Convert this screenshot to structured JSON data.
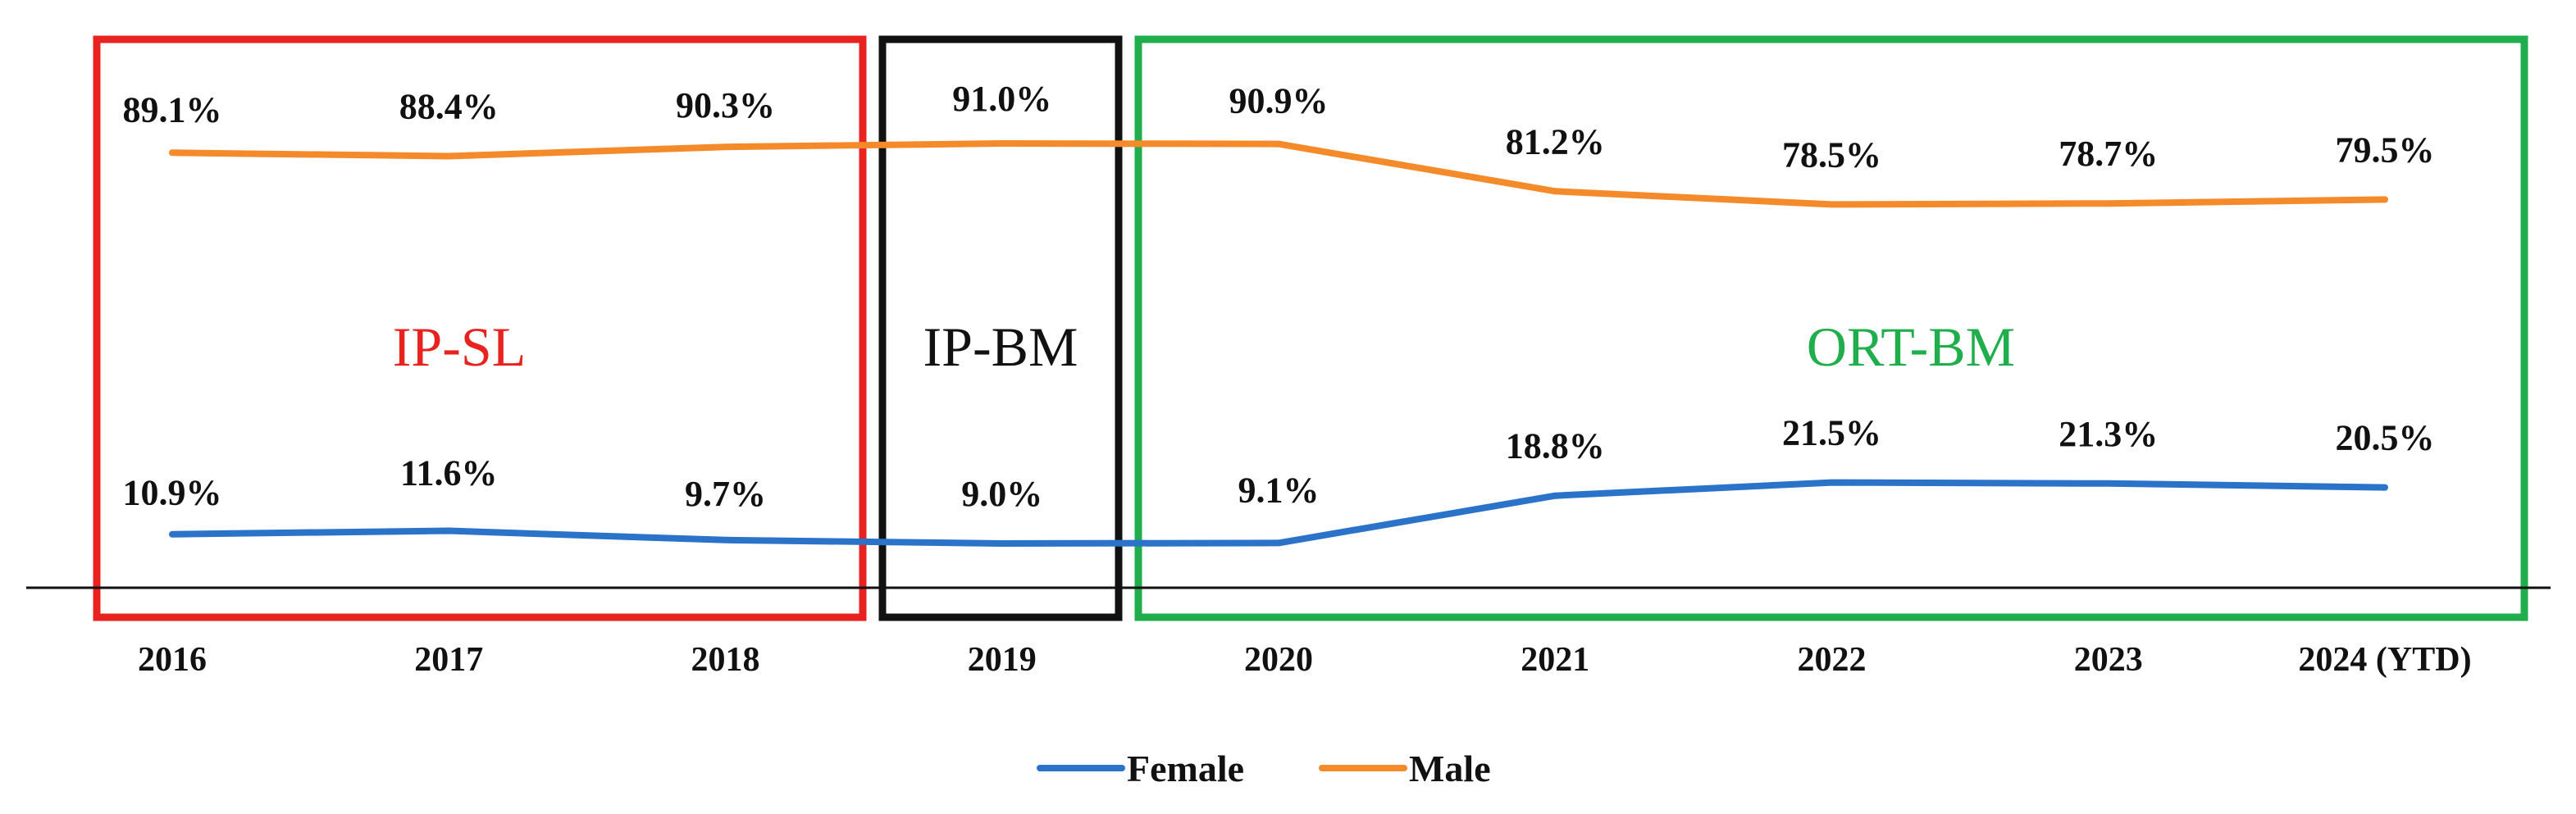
{
  "chart_data": {
    "type": "line",
    "categories": [
      "2016",
      "2017",
      "2018",
      "2019",
      "2020",
      "2021",
      "2022",
      "2023",
      "2024 (YTD)"
    ],
    "series": [
      {
        "name": "Female",
        "color": "#2a73c8",
        "values": [
          10.9,
          11.6,
          9.7,
          9.0,
          9.1,
          18.8,
          21.5,
          21.3,
          20.5
        ],
        "labels": [
          "10.9%",
          "11.6%",
          "9.7%",
          "9.0%",
          "9.1%",
          "18.8%",
          "21.5%",
          "21.3%",
          "20.5%"
        ]
      },
      {
        "name": "Male",
        "color": "#f58a2b",
        "values": [
          89.1,
          88.4,
          90.3,
          91.0,
          90.9,
          81.2,
          78.5,
          78.7,
          79.5
        ],
        "labels": [
          "89.1%",
          "88.4%",
          "90.3%",
          "91.0%",
          "90.9%",
          "81.2%",
          "78.5%",
          "78.7%",
          "79.5%"
        ]
      }
    ],
    "ylim": [
      0,
      100
    ],
    "title": "",
    "xlabel": "",
    "ylabel": "",
    "legend": "bottom-center",
    "regions": [
      {
        "label": "IP-SL",
        "color": "#e8231f",
        "from": "2016",
        "to": "2018"
      },
      {
        "label": "IP-BM",
        "color": "#111111",
        "from": "2019",
        "to": "2019"
      },
      {
        "label": "ORT-BM",
        "color": "#1fae4b",
        "from": "2020",
        "to": "2024 (YTD)"
      }
    ]
  }
}
